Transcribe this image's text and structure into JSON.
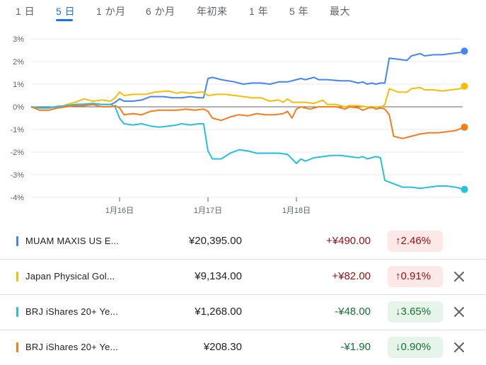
{
  "tabs": [
    {
      "label": "1 日",
      "active": false
    },
    {
      "label": "5 日",
      "active": true
    },
    {
      "label": "1 か月",
      "active": false
    },
    {
      "label": "6 か月",
      "active": false
    },
    {
      "label": "年初来",
      "active": false
    },
    {
      "label": "1 年",
      "active": false
    },
    {
      "label": "5 年",
      "active": false
    },
    {
      "label": "最大",
      "active": false
    }
  ],
  "chart_data": {
    "type": "line",
    "ylim": [
      -4,
      3
    ],
    "yticks": [
      "3%",
      "2%",
      "1%",
      "0%",
      "-1%",
      "-2%",
      "-3%",
      "-4%"
    ],
    "xlim": [
      0,
      4.8
    ],
    "xticks": [
      {
        "x": 1,
        "label": "1月16日"
      },
      {
        "x": 2,
        "label": "1月17日"
      },
      {
        "x": 3,
        "label": "1月18日"
      }
    ],
    "grid": true,
    "series": [
      {
        "name": "MUAM MAXIS US E...",
        "color": "#4285f4",
        "values": [
          [
            0,
            0
          ],
          [
            0.1,
            -0.05
          ],
          [
            0.2,
            -0.05
          ],
          [
            0.3,
            0.02
          ],
          [
            0.4,
            0.05
          ],
          [
            0.5,
            0.1
          ],
          [
            0.6,
            0.12
          ],
          [
            0.7,
            0.15
          ],
          [
            0.8,
            0.1
          ],
          [
            0.9,
            0.1
          ],
          [
            0.95,
            0.2
          ],
          [
            1.0,
            0.35
          ],
          [
            1.05,
            0.25
          ],
          [
            1.15,
            0.25
          ],
          [
            1.25,
            0.3
          ],
          [
            1.35,
            0.45
          ],
          [
            1.5,
            0.45
          ],
          [
            1.6,
            0.4
          ],
          [
            1.7,
            0.4
          ],
          [
            1.8,
            0.45
          ],
          [
            1.9,
            0.4
          ],
          [
            1.95,
            0.4
          ],
          [
            2.0,
            1.25
          ],
          [
            2.05,
            1.3
          ],
          [
            2.15,
            1.2
          ],
          [
            2.3,
            1.1
          ],
          [
            2.4,
            1.0
          ],
          [
            2.5,
            1.05
          ],
          [
            2.6,
            1.05
          ],
          [
            2.7,
            1.0
          ],
          [
            2.8,
            1.1
          ],
          [
            2.9,
            1.1
          ],
          [
            3.0,
            1.2
          ],
          [
            3.05,
            1.25
          ],
          [
            3.1,
            1.2
          ],
          [
            3.2,
            1.3
          ],
          [
            3.25,
            1.2
          ],
          [
            3.35,
            1.2
          ],
          [
            3.5,
            1.15
          ],
          [
            3.6,
            1.15
          ],
          [
            3.7,
            1.05
          ],
          [
            3.75,
            1.1
          ],
          [
            3.8,
            1.0
          ],
          [
            3.85,
            1.05
          ],
          [
            3.9,
            1.0
          ],
          [
            3.95,
            1.05
          ],
          [
            4.0,
            1.05
          ],
          [
            4.05,
            2.15
          ],
          [
            4.15,
            2.1
          ],
          [
            4.25,
            2.05
          ],
          [
            4.3,
            2.25
          ],
          [
            4.4,
            2.35
          ],
          [
            4.45,
            2.25
          ],
          [
            4.55,
            2.3
          ],
          [
            4.65,
            2.3
          ],
          [
            4.75,
            2.35
          ],
          [
            4.85,
            2.4
          ],
          [
            4.9,
            2.46
          ]
        ]
      },
      {
        "name": "Japan Physical Gol...",
        "color": "#fbbc04",
        "values": [
          [
            0,
            0
          ],
          [
            0.1,
            -0.15
          ],
          [
            0.2,
            -0.15
          ],
          [
            0.3,
            -0.05
          ],
          [
            0.4,
            0.1
          ],
          [
            0.5,
            0.2
          ],
          [
            0.6,
            0.35
          ],
          [
            0.7,
            0.25
          ],
          [
            0.8,
            0.3
          ],
          [
            0.9,
            0.25
          ],
          [
            0.95,
            0.4
          ],
          [
            1.0,
            0.65
          ],
          [
            1.05,
            0.5
          ],
          [
            1.15,
            0.55
          ],
          [
            1.3,
            0.55
          ],
          [
            1.4,
            0.65
          ],
          [
            1.55,
            0.7
          ],
          [
            1.65,
            0.6
          ],
          [
            1.7,
            0.65
          ],
          [
            1.8,
            0.6
          ],
          [
            1.9,
            0.65
          ],
          [
            1.95,
            0.65
          ],
          [
            2.0,
            0.5
          ],
          [
            2.1,
            0.55
          ],
          [
            2.2,
            0.55
          ],
          [
            2.3,
            0.5
          ],
          [
            2.4,
            0.45
          ],
          [
            2.5,
            0.4
          ],
          [
            2.6,
            0.4
          ],
          [
            2.7,
            0.25
          ],
          [
            2.8,
            0.3
          ],
          [
            2.85,
            0.2
          ],
          [
            2.9,
            0.35
          ],
          [
            2.95,
            0.2
          ],
          [
            3.0,
            0.2
          ],
          [
            3.1,
            0.2
          ],
          [
            3.2,
            0.15
          ],
          [
            3.3,
            0.3
          ],
          [
            3.35,
            0.1
          ],
          [
            3.45,
            0.1
          ],
          [
            3.55,
            0.0
          ],
          [
            3.6,
            0.05
          ],
          [
            3.7,
            0.05
          ],
          [
            3.8,
            0.0
          ],
          [
            3.85,
            -0.05
          ],
          [
            3.9,
            0.0
          ],
          [
            3.95,
            -0.05
          ],
          [
            4.0,
            0.1
          ],
          [
            4.05,
            0.8
          ],
          [
            4.15,
            0.65
          ],
          [
            4.25,
            0.65
          ],
          [
            4.3,
            0.8
          ],
          [
            4.4,
            0.85
          ],
          [
            4.45,
            0.75
          ],
          [
            4.55,
            0.75
          ],
          [
            4.65,
            0.7
          ],
          [
            4.75,
            0.75
          ],
          [
            4.85,
            0.8
          ],
          [
            4.9,
            0.91
          ]
        ]
      },
      {
        "name": "BRJ iShares 20+ Ye...",
        "color": "#24c1e0",
        "values": [
          [
            0,
            0
          ],
          [
            0.1,
            -0.05
          ],
          [
            0.2,
            -0.05
          ],
          [
            0.3,
            0.0
          ],
          [
            0.4,
            0.05
          ],
          [
            0.5,
            0.1
          ],
          [
            0.6,
            0.1
          ],
          [
            0.7,
            0.15
          ],
          [
            0.8,
            0.1
          ],
          [
            0.9,
            0.1
          ],
          [
            0.95,
            0.0
          ],
          [
            1.0,
            -0.5
          ],
          [
            1.05,
            -0.75
          ],
          [
            1.15,
            -0.8
          ],
          [
            1.25,
            -0.75
          ],
          [
            1.35,
            -0.85
          ],
          [
            1.45,
            -0.9
          ],
          [
            1.55,
            -0.85
          ],
          [
            1.65,
            -0.8
          ],
          [
            1.7,
            -0.75
          ],
          [
            1.8,
            -0.8
          ],
          [
            1.9,
            -0.75
          ],
          [
            1.95,
            -0.75
          ],
          [
            2.0,
            -1.95
          ],
          [
            2.05,
            -2.3
          ],
          [
            2.15,
            -2.3
          ],
          [
            2.25,
            -2.05
          ],
          [
            2.35,
            -1.9
          ],
          [
            2.45,
            -1.95
          ],
          [
            2.55,
            -2.05
          ],
          [
            2.7,
            -2.05
          ],
          [
            2.8,
            -2.05
          ],
          [
            2.9,
            -2.1
          ],
          [
            3.0,
            -2.5
          ],
          [
            3.05,
            -2.3
          ],
          [
            3.1,
            -2.4
          ],
          [
            3.2,
            -2.25
          ],
          [
            3.3,
            -2.2
          ],
          [
            3.4,
            -2.15
          ],
          [
            3.5,
            -2.15
          ],
          [
            3.6,
            -2.2
          ],
          [
            3.7,
            -2.25
          ],
          [
            3.75,
            -2.2
          ],
          [
            3.8,
            -2.3
          ],
          [
            3.85,
            -2.25
          ],
          [
            3.9,
            -2.2
          ],
          [
            3.95,
            -2.25
          ],
          [
            4.0,
            -3.25
          ],
          [
            4.1,
            -3.4
          ],
          [
            4.2,
            -3.55
          ],
          [
            4.3,
            -3.55
          ],
          [
            4.4,
            -3.6
          ],
          [
            4.5,
            -3.55
          ],
          [
            4.6,
            -3.5
          ],
          [
            4.7,
            -3.5
          ],
          [
            4.8,
            -3.55
          ],
          [
            4.9,
            -3.65
          ]
        ]
      },
      {
        "name": "BRJ iShares 20+ Ye...",
        "color": "#fa7b17",
        "values": [
          [
            0,
            0
          ],
          [
            0.1,
            -0.15
          ],
          [
            0.2,
            -0.15
          ],
          [
            0.3,
            -0.05
          ],
          [
            0.4,
            0.0
          ],
          [
            0.5,
            0.05
          ],
          [
            0.6,
            0.05
          ],
          [
            0.7,
            0.1
          ],
          [
            0.8,
            0.0
          ],
          [
            0.9,
            0.0
          ],
          [
            0.95,
            0.05
          ],
          [
            1.0,
            -0.05
          ],
          [
            1.05,
            -0.35
          ],
          [
            1.15,
            -0.3
          ],
          [
            1.25,
            -0.35
          ],
          [
            1.35,
            -0.2
          ],
          [
            1.45,
            -0.15
          ],
          [
            1.55,
            -0.15
          ],
          [
            1.65,
            -0.15
          ],
          [
            1.75,
            -0.1
          ],
          [
            1.85,
            -0.15
          ],
          [
            1.95,
            -0.1
          ],
          [
            2.0,
            -0.2
          ],
          [
            2.05,
            -0.5
          ],
          [
            2.15,
            -0.6
          ],
          [
            2.25,
            -0.45
          ],
          [
            2.35,
            -0.35
          ],
          [
            2.45,
            -0.4
          ],
          [
            2.55,
            -0.3
          ],
          [
            2.65,
            -0.35
          ],
          [
            2.75,
            -0.35
          ],
          [
            2.85,
            -0.3
          ],
          [
            2.9,
            -0.2
          ],
          [
            2.95,
            -0.5
          ],
          [
            3.0,
            -0.1
          ],
          [
            3.05,
            0.0
          ],
          [
            3.15,
            -0.1
          ],
          [
            3.25,
            0.0
          ],
          [
            3.35,
            0.0
          ],
          [
            3.45,
            0.0
          ],
          [
            3.55,
            -0.1
          ],
          [
            3.6,
            0.0
          ],
          [
            3.7,
            -0.05
          ],
          [
            3.75,
            -0.15
          ],
          [
            3.85,
            0.0
          ],
          [
            3.9,
            -0.1
          ],
          [
            3.95,
            -0.05
          ],
          [
            4.0,
            -0.1
          ],
          [
            4.05,
            -0.35
          ],
          [
            4.1,
            -1.3
          ],
          [
            4.2,
            -1.4
          ],
          [
            4.3,
            -1.3
          ],
          [
            4.4,
            -1.2
          ],
          [
            4.5,
            -1.15
          ],
          [
            4.6,
            -1.15
          ],
          [
            4.7,
            -1.1
          ],
          [
            4.8,
            -1.05
          ],
          [
            4.9,
            -0.9
          ]
        ]
      }
    ]
  },
  "rows": [
    {
      "color": "#4285f4",
      "name": "MUAM MAXIS US E...",
      "price": "¥20,395.00",
      "change": "+¥490.00",
      "direction": "up",
      "arrow": "↑",
      "percent": "2.46%",
      "removable": false
    },
    {
      "color": "#fbbc04",
      "name": "Japan Physical Gol...",
      "price": "¥9,134.00",
      "change": "+¥82.00",
      "direction": "up",
      "arrow": "↑",
      "percent": "0.91%",
      "removable": true
    },
    {
      "color": "#24c1e0",
      "name": "BRJ iShares 20+ Ye...",
      "price": "¥1,268.00",
      "change": "-¥48.00",
      "direction": "down",
      "arrow": "↓",
      "percent": "3.65%",
      "removable": true
    },
    {
      "color": "#fa7b17",
      "name": "BRJ iShares 20+ Ye...",
      "price": "¥208.30",
      "change": "-¥1.90",
      "direction": "down",
      "arrow": "↓",
      "percent": "0.90%",
      "removable": true
    }
  ]
}
